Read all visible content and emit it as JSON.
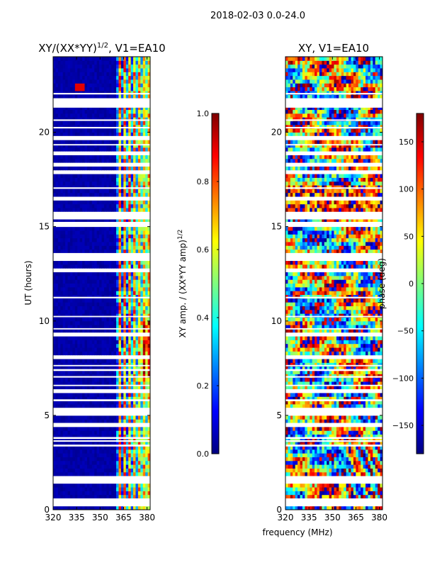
{
  "figure": {
    "suptitle": "2018-02-03 0.0-24.0",
    "xlabel_shared": "frequency (MHz)"
  },
  "colormap": {
    "name": "jet",
    "stops": [
      "#00007f",
      "#0000ff",
      "#007fff",
      "#00ffff",
      "#7fff7f",
      "#ffff00",
      "#ff7f00",
      "#ff0000",
      "#7f0000"
    ]
  },
  "chart_data": [
    {
      "type": "heatmap",
      "title": "XY/(XX*YY)^{1/2}, V1=EA10",
      "title_main": "XY/(XX*YY)",
      "title_sup": "1/2",
      "title_tail": ", V1=EA10",
      "xlabel": "",
      "ylabel": "UT (hours)",
      "xlim": [
        320,
        382
      ],
      "ylim": [
        0,
        24
      ],
      "xticks": [
        320,
        335,
        350,
        365,
        380
      ],
      "yticks": [
        0,
        5,
        10,
        15,
        20
      ],
      "colorbar": {
        "label_main": "XY amp. / (XX*YY amp)",
        "label_sup": "1/2",
        "range": [
          0.0,
          1.0
        ],
        "ticks": [
          "0.0",
          "0.2",
          "0.4",
          "0.6",
          "0.8",
          "1.0"
        ],
        "tick_values": [
          0.0,
          0.2,
          0.4,
          0.6,
          0.8,
          1.0
        ]
      }
    },
    {
      "type": "heatmap",
      "title": "XY, V1=EA10",
      "xlabel": "frequency (MHz)",
      "ylabel": "",
      "xlim": [
        320,
        382
      ],
      "ylim": [
        0,
        24
      ],
      "xticks": [
        320,
        335,
        350,
        365,
        380
      ],
      "yticks": [
        0,
        5,
        10,
        15,
        20
      ],
      "colorbar": {
        "label": "phase (deg)",
        "range": [
          -180,
          180
        ],
        "ticks": [
          "−150",
          "−100",
          "−50",
          "0",
          "50",
          "100",
          "150"
        ],
        "tick_values": [
          -150,
          -100,
          -50,
          0,
          50,
          100,
          150
        ]
      }
    }
  ],
  "flagged_time_ranges_hours": [
    [
      0.3,
      0.6
    ],
    [
      1.45,
      1.55
    ],
    [
      1.7,
      1.78
    ],
    [
      3.35,
      3.45
    ],
    [
      3.6,
      3.68
    ],
    [
      3.75,
      3.85
    ],
    [
      4.45,
      4.6
    ],
    [
      5.05,
      5.4
    ],
    [
      5.75,
      5.85
    ],
    [
      6.3,
      6.38
    ],
    [
      6.55,
      6.62
    ],
    [
      7.0,
      7.08
    ],
    [
      7.35,
      7.45
    ],
    [
      7.6,
      7.67
    ],
    [
      8.05,
      8.12
    ],
    [
      9.3,
      9.38
    ],
    [
      9.55,
      9.62
    ],
    [
      10.2,
      10.27
    ],
    [
      11.2,
      11.28
    ],
    [
      12.65,
      12.72
    ],
    [
      13.2,
      13.3
    ],
    [
      13.45,
      13.6
    ],
    [
      15.1,
      15.25
    ],
    [
      15.4,
      15.5
    ],
    [
      15.7,
      15.78
    ],
    [
      16.5,
      16.57
    ],
    [
      17.0,
      17.08
    ],
    [
      17.8,
      17.9
    ],
    [
      18.25,
      18.32
    ],
    [
      18.85,
      18.92
    ],
    [
      19.3,
      19.37
    ],
    [
      19.7,
      19.8
    ],
    [
      20.2,
      20.28
    ],
    [
      20.6,
      20.68
    ],
    [
      21.3,
      21.6
    ],
    [
      21.7,
      21.8
    ],
    [
      22.0,
      22.08
    ]
  ]
}
